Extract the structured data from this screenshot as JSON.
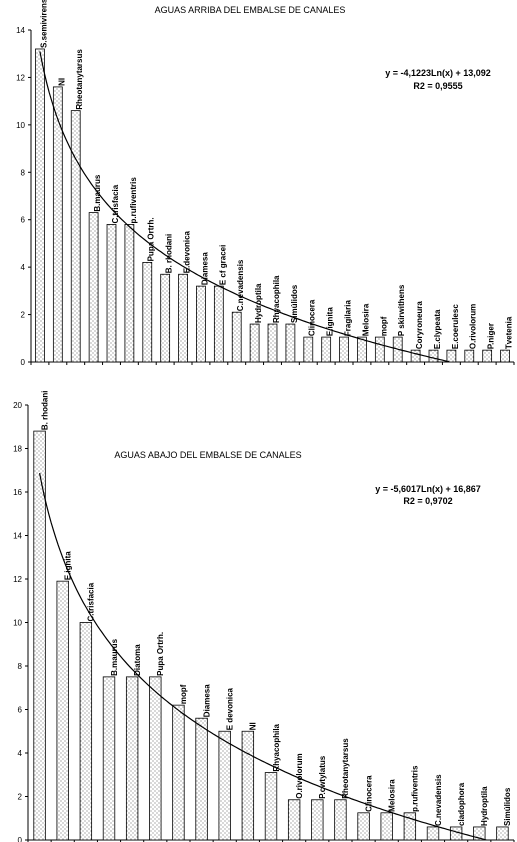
{
  "chart_data": [
    {
      "type": "bar",
      "title": "AGUAS ARRIBA DEL EMBALSE DE CANALES",
      "equation": "y = -4,1223Ln(x) + 13,092",
      "r2": "R2 = 0,9555",
      "trend": {
        "a": -4.1223,
        "b": 13.092
      },
      "ylim": [
        0,
        14
      ],
      "yticks": [
        "0",
        "2",
        "4",
        "6",
        "8",
        "10",
        "12",
        "14"
      ],
      "categories": [
        "S.semivirens",
        "NI",
        "Rheotanytarsus",
        "B.maurus",
        "C.trisfacia",
        "p.rufiventris",
        "Pupa Ortrh.",
        "B. rhodani",
        "E.devonica",
        "Diamesa",
        "E cf gracei",
        "C.nevadensis",
        "Hydroptila",
        "Rhyacophila",
        "Simúlidos",
        "Clinocera",
        "E.ignita",
        "Fragilaria",
        "Melosira",
        "mopf",
        "P skirwithens",
        "Coryroneura",
        "E.clypeata",
        "E.coerulesc",
        "O.rivolorum",
        "P.niger",
        "Tvetenia"
      ],
      "values": [
        13.2,
        11.6,
        10.6,
        6.3,
        5.8,
        5.8,
        4.2,
        3.7,
        3.7,
        3.2,
        3.2,
        2.1,
        1.6,
        1.6,
        1.6,
        1.05,
        1.05,
        1.05,
        1.05,
        1.05,
        1.05,
        0.5,
        0.5,
        0.5,
        0.5,
        0.5,
        0.5
      ]
    },
    {
      "type": "bar",
      "title": "AGUAS ABAJO DEL EMBALSE DE CANALES",
      "equation": "y = -5,6017Ln(x) + 16,867",
      "r2": "R2 = 0,9702",
      "trend": {
        "a": -5.6017,
        "b": 16.867
      },
      "ylim": [
        0,
        20
      ],
      "yticks": [
        "0",
        "2",
        "4",
        "6",
        "8",
        "10",
        "12",
        "14",
        "16",
        "18",
        "20"
      ],
      "categories": [
        "B. rhodani",
        "E.ignita",
        "C.trisfacia",
        "B.maurus",
        "Diatoma",
        "Pupa Ortrh.",
        "mopf",
        "Diamesa",
        "E devonica",
        "NI",
        "Rhyacophila",
        "O.rivolorum",
        "P.cwtylatus",
        "Rheotanytarsus",
        "Clinocera",
        "Melosira",
        "p.rufiventris",
        "C.nevadensis",
        "cladophora",
        "Hydroptila",
        "Simúlidos"
      ],
      "values": [
        18.8,
        11.9,
        10.0,
        7.5,
        7.5,
        7.5,
        6.2,
        5.6,
        5.0,
        5.0,
        3.1,
        1.85,
        1.85,
        1.85,
        1.25,
        1.25,
        1.25,
        0.6,
        0.6,
        0.6,
        0.6
      ]
    }
  ]
}
